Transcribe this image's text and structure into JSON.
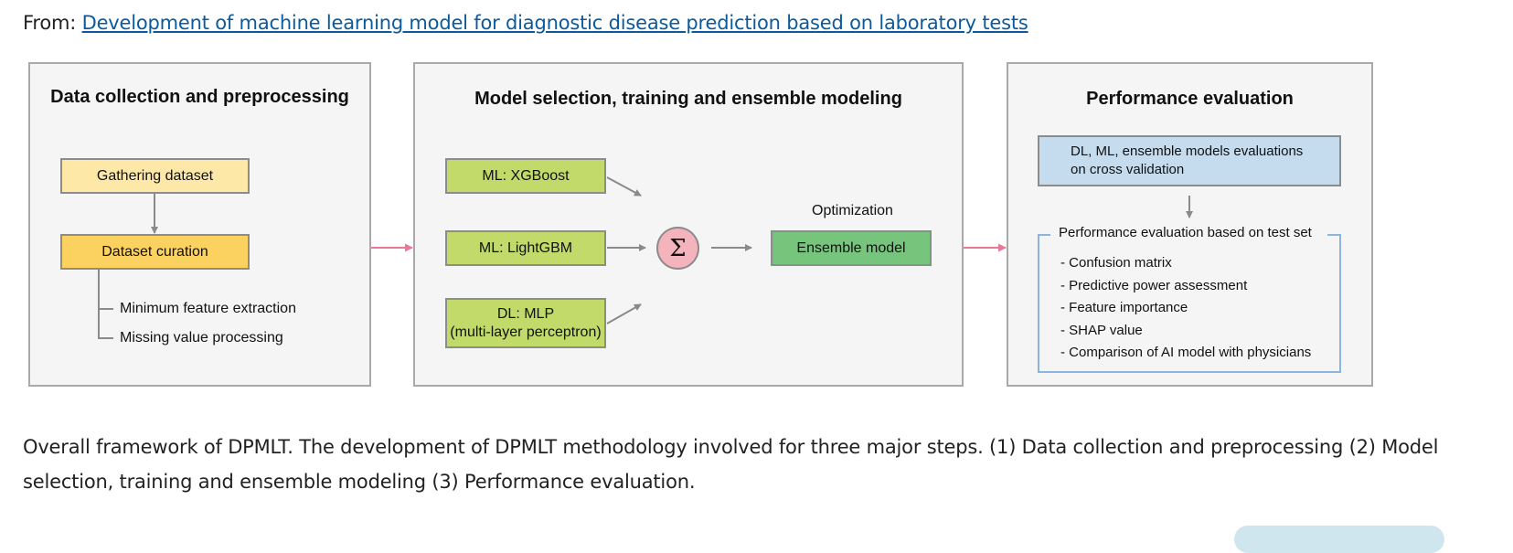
{
  "header": {
    "from_label": "From:",
    "link_text": "Development of machine learning model for diagnostic disease prediction based on laboratory tests"
  },
  "panels": {
    "data": {
      "title": "Data collection and preprocessing",
      "gathering": "Gathering dataset",
      "curation": "Dataset curation",
      "sub1": "Minimum feature extraction",
      "sub2": "Missing value processing"
    },
    "model": {
      "title": "Model selection, training and ensemble modeling",
      "xgboost": "ML: XGBoost",
      "lightgbm": "ML: LightGBM",
      "mlp_line1": "DL: MLP",
      "mlp_line2": "(multi-layer perceptron)",
      "sigma": "Σ",
      "optimization": "Optimization",
      "ensemble": "Ensemble model"
    },
    "perf": {
      "title": "Performance evaluation",
      "cv_line1": "DL, ML, ensemble models evaluations",
      "cv_line2": "on cross validation",
      "test_title": "Performance evaluation based on test set",
      "items": [
        "- Confusion matrix",
        "- Predictive power assessment",
        "- Feature importance",
        "- SHAP value",
        "- Comparison of AI model with physicians"
      ]
    }
  },
  "caption": "Overall framework of DPMLT. The development of DPMLT methodology involved for three major steps. (1) Data collection and preprocessing (2) Model selection, training and ensemble modeling (3) Performance evaluation.",
  "colors": {
    "gathering": "#fde8a8",
    "curation": "#fbd160",
    "ml_green": "#c2da6a",
    "ensemble_green": "#77c57d",
    "sigma_pink": "#f4b3bd",
    "cv_blue": "#c5dcef",
    "test_border": "#8cb4dc",
    "arrow_pink": "#e87a97",
    "arrow_gray": "#8a8a8a",
    "link": "#0b5a9e"
  }
}
